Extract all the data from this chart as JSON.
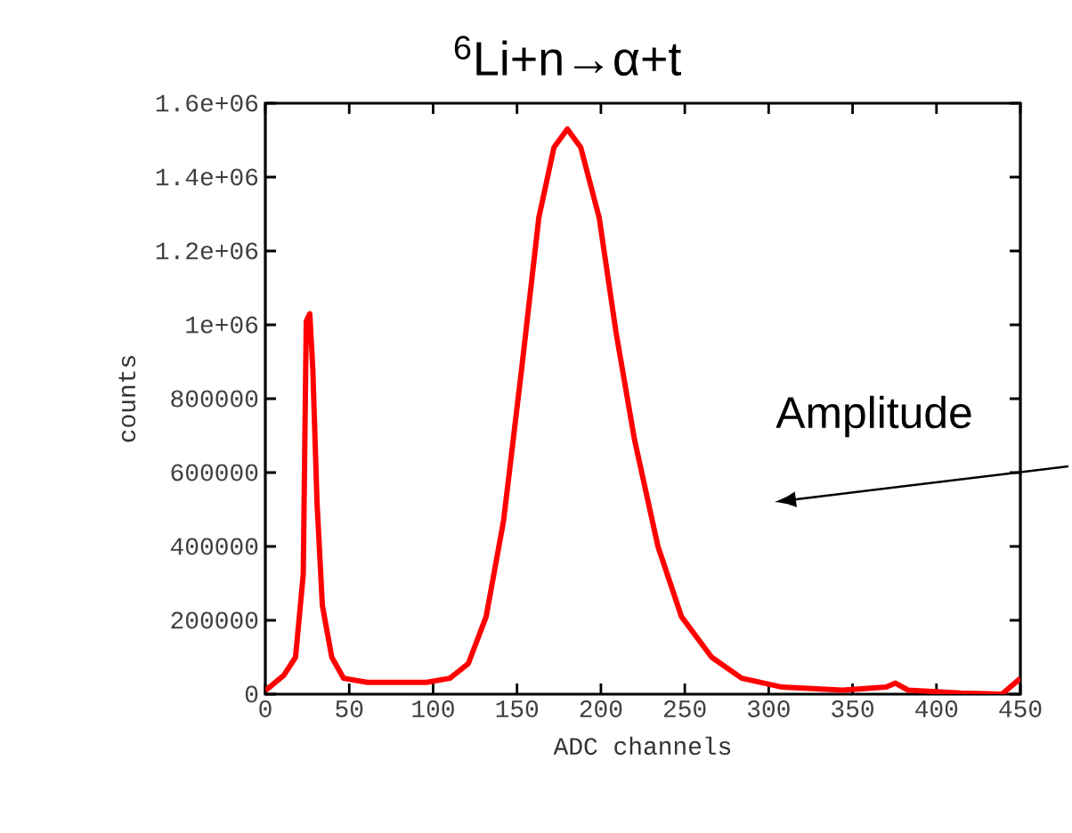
{
  "chart_data": {
    "type": "line",
    "title": "$^{6}$Li+n→α+t",
    "xlabel": "ADC channels",
    "ylabel": "counts",
    "xlim": [
      0,
      450
    ],
    "xticks": [
      0,
      50,
      100,
      150,
      200,
      250,
      300,
      350,
      400,
      450
    ],
    "ylim": [
      0,
      1600000
    ],
    "yticks": [
      0,
      200000,
      400000,
      600000,
      800000,
      {
        "value": 1000000,
        "label": "1e+06"
      },
      {
        "value": 1200000,
        "label": "1.2e+06"
      },
      {
        "value": 1400000,
        "label": "1.4e+06"
      },
      {
        "value": 1600000,
        "label": "1.6e+06"
      }
    ],
    "line_style": "solid",
    "marker": "none",
    "annotations": [
      "Amplitude"
    ],
    "series": [
      {
        "color": "#ff0000",
        "x": [
          0,
          2.5,
          11,
          18,
          22.6,
          24.4,
          26.5,
          28.3,
          30.8,
          34,
          39.6,
          46.7,
          60.8,
          96,
          110,
          121,
          131.6,
          142,
          153,
          163,
          172,
          180,
          188,
          199,
          209,
          220,
          234,
          248,
          266,
          284,
          308,
          344,
          370,
          375.6,
          383,
          414.6,
          439,
          450
        ],
        "values": [
          10000,
          19000,
          51000,
          100000,
          324000,
          1010000,
          1030000,
          880000,
          520000,
          240000,
          100000,
          43000,
          32000,
          32000,
          43000,
          83000,
          210000,
          470000,
          890000,
          1290000,
          1480000,
          1530000,
          1480000,
          1290000,
          980000,
          690000,
          400000,
          210000,
          100000,
          43000,
          19000,
          11000,
          19000,
          30000,
          11000,
          3000,
          0,
          43000
        ]
      }
    ]
  }
}
